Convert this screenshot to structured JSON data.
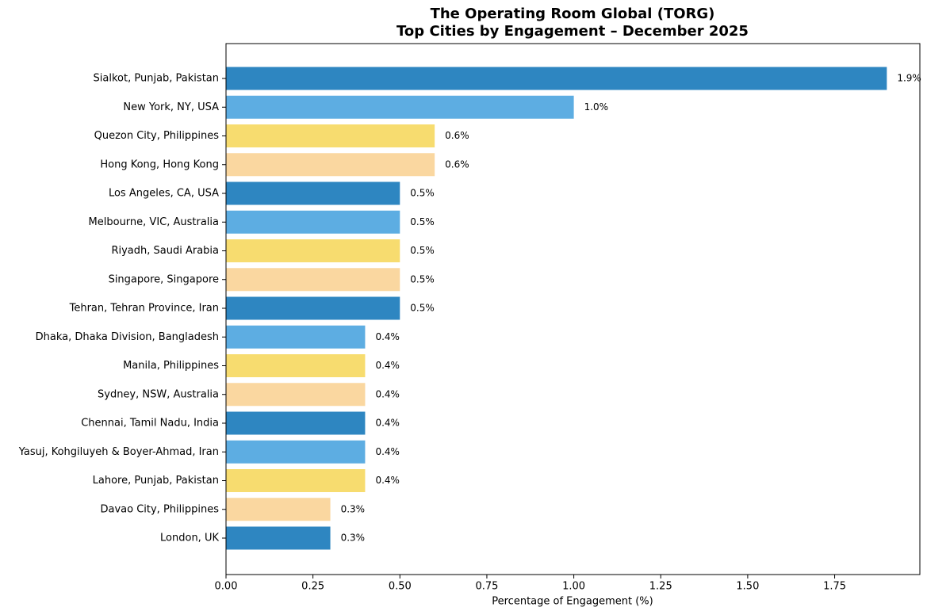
{
  "chart_data": {
    "type": "barh",
    "title": [
      "The Operating Room Global (TORG)",
      "Top Cities by Engagement – December 2025"
    ],
    "xlabel": "Percentage of Engagement (%)",
    "categories": [
      "Sialkot, Punjab, Pakistan",
      "New York, NY, USA",
      "Quezon City, Philippines",
      "Hong Kong, Hong Kong",
      "Los Angeles, CA, USA",
      "Melbourne, VIC, Australia",
      "Riyadh, Saudi Arabia",
      "Singapore, Singapore",
      "Tehran, Tehran Province, Iran",
      "Dhaka, Dhaka Division, Bangladesh",
      "Manila, Philippines",
      "Sydney, NSW, Australia",
      "Chennai, Tamil Nadu, India",
      "Yasuj, Kohgiluyeh & Boyer-Ahmad, Iran",
      "Lahore, Punjab, Pakistan",
      "Davao City, Philippines",
      "London, UK"
    ],
    "values": [
      1.9,
      1.0,
      0.6,
      0.6,
      0.5,
      0.5,
      0.5,
      0.5,
      0.5,
      0.4,
      0.4,
      0.4,
      0.4,
      0.4,
      0.4,
      0.3,
      0.3
    ],
    "value_labels": [
      "1.9%",
      "1.0%",
      "0.6%",
      "0.6%",
      "0.5%",
      "0.5%",
      "0.5%",
      "0.5%",
      "0.5%",
      "0.4%",
      "0.4%",
      "0.4%",
      "0.4%",
      "0.4%",
      "0.4%",
      "0.3%",
      "0.3%"
    ],
    "colors": [
      "#2e86c1",
      "#5dade2",
      "#f7dc6f",
      "#fad7a0",
      "#2e86c1",
      "#5dade2",
      "#f7dc6f",
      "#fad7a0",
      "#2e86c1",
      "#5dade2",
      "#f7dc6f",
      "#fad7a0",
      "#2e86c1",
      "#5dade2",
      "#f7dc6f",
      "#fad7a0",
      "#2e86c1"
    ],
    "xlim": [
      0,
      1.995
    ],
    "xticks": [
      {
        "value": 0,
        "label": "0.00"
      },
      {
        "value": 0.25,
        "label": "0.25"
      },
      {
        "value": 0.5,
        "label": "0.50"
      },
      {
        "value": 0.75,
        "label": "0.75"
      },
      {
        "value": 1,
        "label": "1.00"
      },
      {
        "value": 1.25,
        "label": "1.25"
      },
      {
        "value": 1.5,
        "label": "1.50"
      },
      {
        "value": 1.75,
        "label": "1.75"
      }
    ],
    "grid": false
  }
}
